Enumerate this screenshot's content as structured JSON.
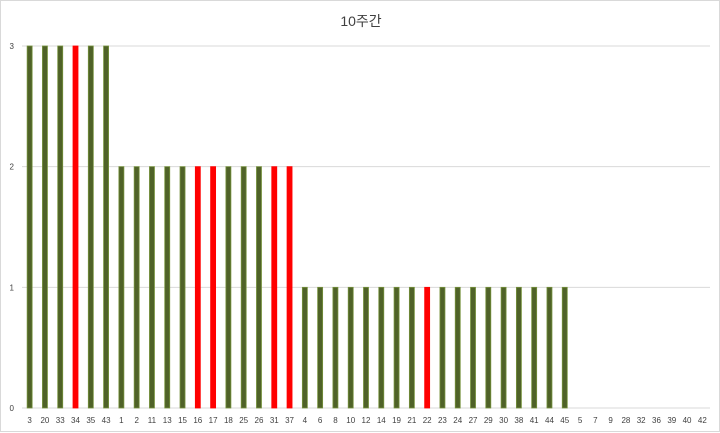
{
  "chart_data": {
    "type": "bar",
    "title": "10주간",
    "categories": [
      "3",
      "20",
      "33",
      "34",
      "35",
      "43",
      "1",
      "2",
      "11",
      "13",
      "15",
      "16",
      "17",
      "18",
      "25",
      "26",
      "31",
      "37",
      "4",
      "6",
      "8",
      "10",
      "12",
      "14",
      "19",
      "21",
      "22",
      "23",
      "24",
      "27",
      "29",
      "30",
      "38",
      "41",
      "44",
      "45",
      "5",
      "7",
      "9",
      "28",
      "32",
      "36",
      "39",
      "40",
      "42"
    ],
    "values": [
      3,
      3,
      3,
      3,
      3,
      3,
      2,
      2,
      2,
      2,
      2,
      2,
      2,
      2,
      2,
      2,
      2,
      2,
      1,
      1,
      1,
      1,
      1,
      1,
      1,
      1,
      1,
      1,
      1,
      1,
      1,
      1,
      1,
      1,
      1,
      1,
      0,
      0,
      0,
      0,
      0,
      0,
      0,
      0,
      0
    ],
    "highlighted": [
      "34",
      "16",
      "17",
      "31",
      "37",
      "22"
    ],
    "colors": {
      "default": "#4f6228",
      "default_edge": "#76923c",
      "highlight": "#ff0000"
    },
    "ylim": [
      0,
      3
    ],
    "yticks": [
      0,
      1,
      2,
      3
    ],
    "grid": true,
    "xlabel": "",
    "ylabel": ""
  }
}
